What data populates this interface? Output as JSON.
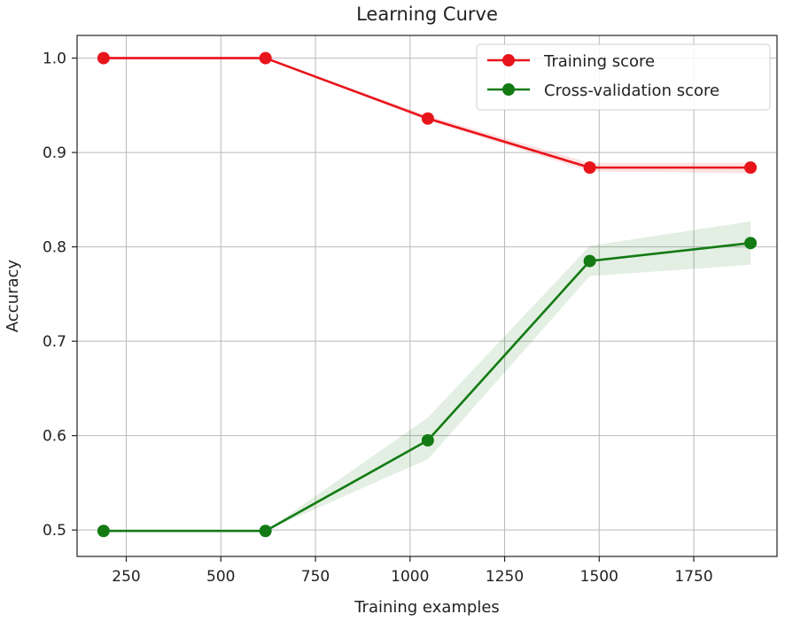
{
  "chart_data": {
    "type": "line",
    "title": "Learning Curve",
    "xlabel": "Training examples",
    "ylabel": "Accuracy",
    "xlim": [
      120,
      1970
    ],
    "ylim": [
      0.472,
      1.024
    ],
    "xticks": [
      250,
      500,
      750,
      1000,
      1250,
      1500,
      1750
    ],
    "yticks": [
      0.5,
      0.6,
      0.7,
      0.8,
      0.9,
      1.0
    ],
    "xtick_labels": [
      "250",
      "500",
      "750",
      "1000",
      "1250",
      "1500",
      "1750"
    ],
    "ytick_labels": [
      "0.5",
      "0.6",
      "0.7",
      "0.8",
      "0.9",
      "1.0"
    ],
    "grid": true,
    "legend_position": "top-right",
    "x": [
      190,
      618,
      1047,
      1475,
      1900
    ],
    "series": [
      {
        "name": "Training score",
        "color": "#e8141b",
        "values": [
          1.0,
          1.0,
          0.936,
          0.884,
          0.884
        ],
        "band_lower": [
          1.0,
          1.0,
          0.934,
          0.88,
          0.878
        ],
        "band_upper": [
          1.0,
          1.0,
          0.939,
          0.889,
          0.889
        ]
      },
      {
        "name": "Cross-validation score",
        "color": "#137a14",
        "values": [
          0.499,
          0.499,
          0.595,
          0.785,
          0.804
        ],
        "band_lower": [
          0.499,
          0.499,
          0.575,
          0.769,
          0.781
        ],
        "band_upper": [
          0.499,
          0.499,
          0.619,
          0.801,
          0.827
        ]
      }
    ]
  }
}
